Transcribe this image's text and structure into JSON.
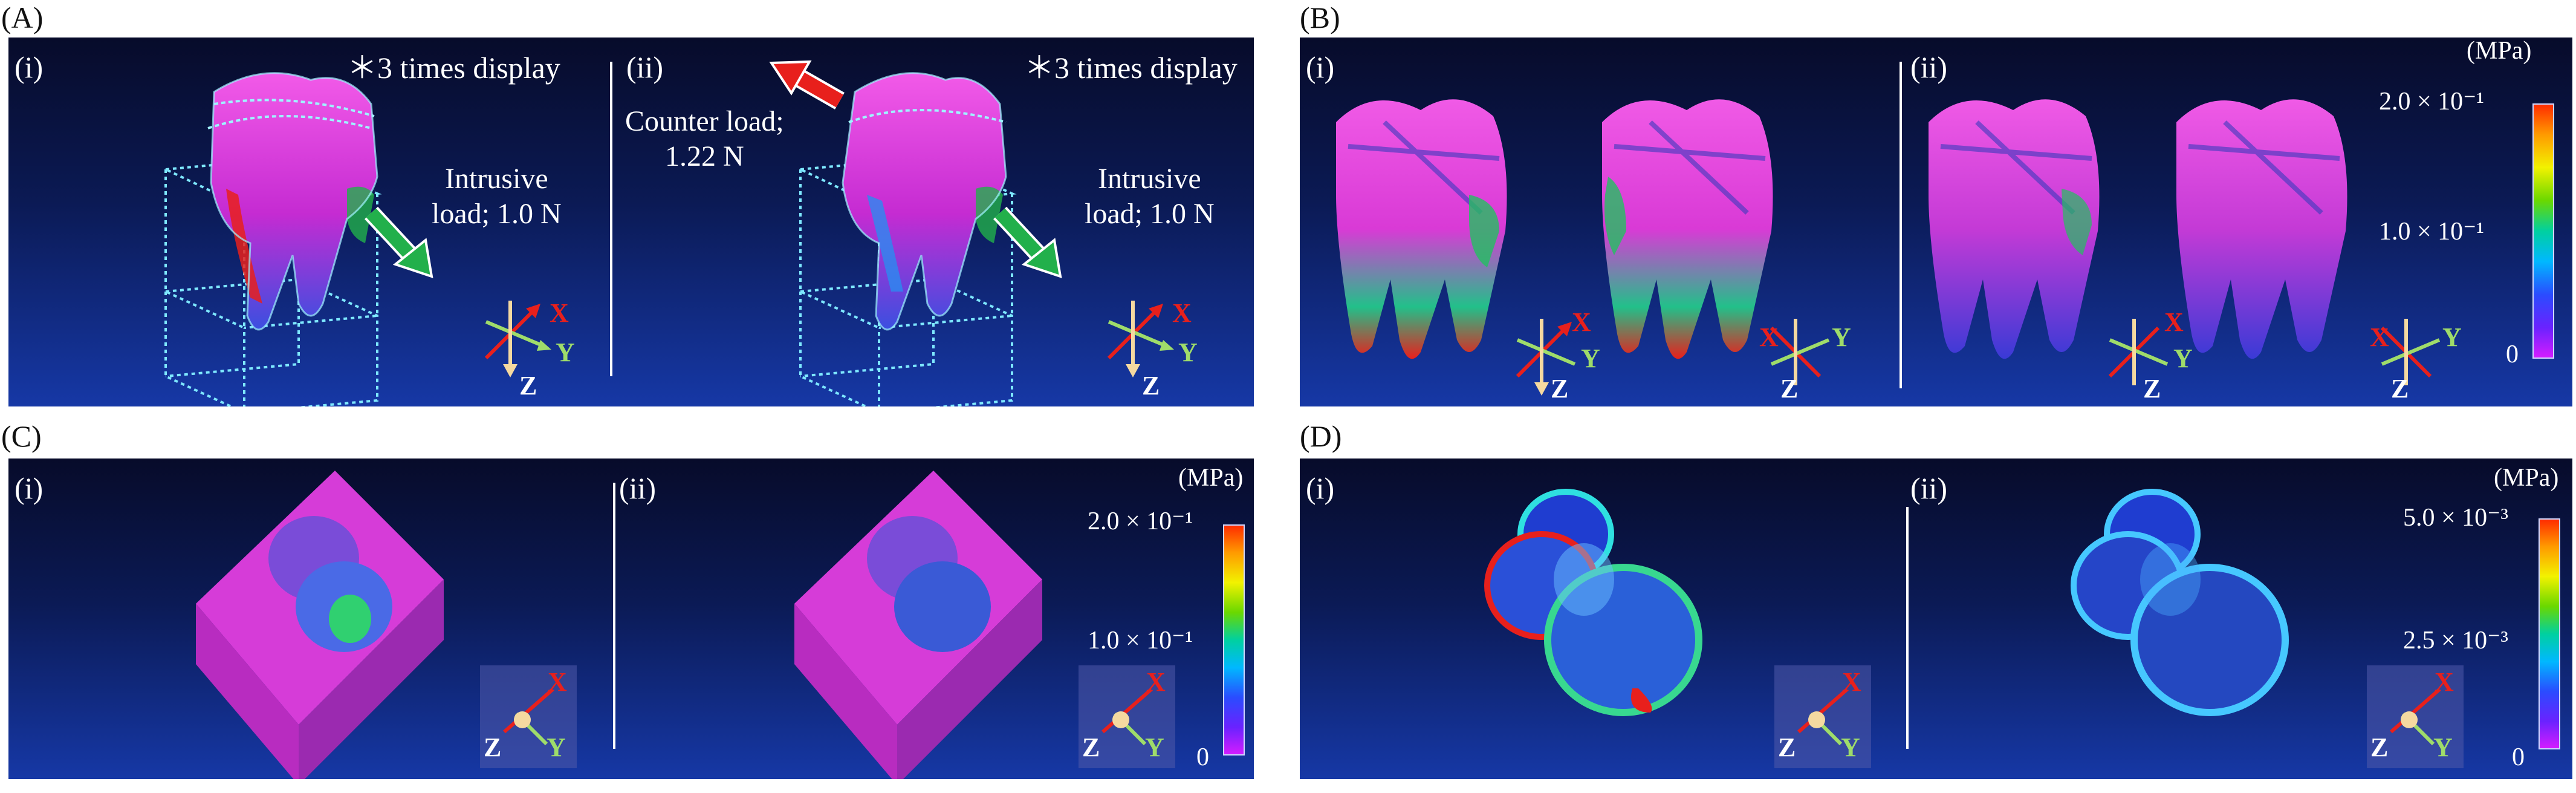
{
  "panels": {
    "A": {
      "letter": "(A)",
      "i": {
        "label": "(i)",
        "note": "＊3 times display",
        "load_line1": "Intrusive",
        "load_line2": "load; 1.0 N"
      },
      "ii": {
        "label": "(ii)",
        "note": "＊3 times display",
        "counter_line1": "Counter load;",
        "counter_line2": "1.22 N",
        "load_line1": "Intrusive",
        "load_line2": "load; 1.0 N"
      }
    },
    "B": {
      "letter": "(B)",
      "i": {
        "label": "(i)"
      },
      "ii": {
        "label": "(ii)"
      },
      "scale": {
        "unit": "(MPa)",
        "max": "2.0 × 10⁻¹",
        "mid": "1.0 × 10⁻¹",
        "min": "0"
      }
    },
    "C": {
      "letter": "(C)",
      "i": {
        "label": "(i)"
      },
      "ii": {
        "label": "(ii)"
      },
      "scale": {
        "unit": "(MPa)",
        "max": "2.0 × 10⁻¹",
        "mid": "1.0 × 10⁻¹",
        "min": "0"
      }
    },
    "D": {
      "letter": "(D)",
      "i": {
        "label": "(i)"
      },
      "ii": {
        "label": "(ii)"
      },
      "scale": {
        "unit": "(MPa)",
        "max": "5.0 × 10⁻³",
        "mid": "2.5 × 10⁻³",
        "min": "0"
      }
    }
  },
  "axes": {
    "x": "X",
    "y": "Y",
    "z": "Z"
  },
  "colors": {
    "arrow_intrusive": "#22b04b",
    "arrow_counter": "#e8201c",
    "axis_x": "#e8201c",
    "axis_y": "#9fdc6a",
    "axis_z": "#f5d9a0",
    "tooth": "#e23ad8",
    "wire": "#7ee8ff"
  }
}
